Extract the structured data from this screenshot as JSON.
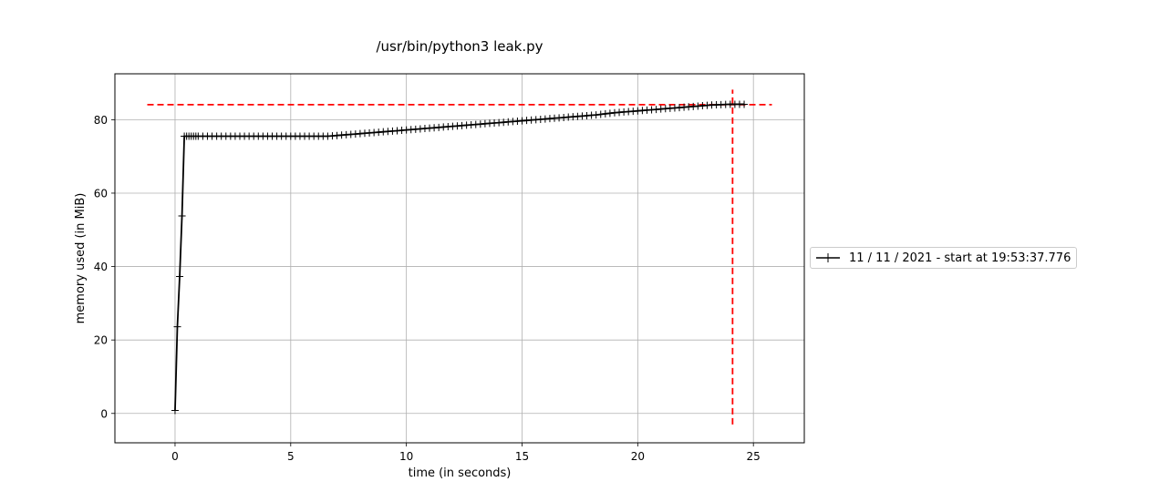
{
  "chart_data": {
    "type": "line",
    "title": "/usr/bin/python3 leak.py",
    "xlabel": "time (in seconds)",
    "ylabel": "memory used (in MiB)",
    "xlim": [
      -2.6,
      27.2
    ],
    "ylim": [
      -8,
      92.5
    ],
    "xticks": [
      0,
      5,
      10,
      15,
      20,
      25
    ],
    "yticks": [
      0,
      20,
      40,
      60,
      80
    ],
    "grid": true,
    "legend_position": "right",
    "series": [
      {
        "name": "11 / 11 / 2021 - start at 19:53:37.776",
        "color": "#000000",
        "marker": "+",
        "x": [
          0.0,
          0.1,
          0.2,
          0.3,
          0.4,
          0.5,
          0.6,
          0.7,
          0.8,
          0.9,
          1.0,
          1.2,
          1.4,
          1.6,
          1.8,
          2.0,
          2.2,
          2.4,
          2.6,
          2.8,
          3.0,
          3.2,
          3.4,
          3.6,
          3.8,
          4.0,
          4.2,
          4.4,
          4.6,
          4.8,
          5.0,
          5.2,
          5.4,
          5.6,
          5.8,
          6.0,
          6.2,
          6.4,
          6.6,
          6.8,
          7.0,
          7.2,
          7.4,
          7.6,
          7.8,
          8.0,
          8.2,
          8.4,
          8.6,
          8.8,
          9.0,
          9.2,
          9.4,
          9.6,
          9.8,
          10.0,
          10.2,
          10.4,
          10.6,
          10.8,
          11.0,
          11.2,
          11.4,
          11.6,
          11.8,
          12.0,
          12.2,
          12.4,
          12.6,
          12.8,
          13.0,
          13.2,
          13.4,
          13.6,
          13.8,
          14.0,
          14.2,
          14.4,
          14.6,
          14.8,
          15.0,
          15.2,
          15.4,
          15.6,
          15.8,
          16.0,
          16.2,
          16.4,
          16.6,
          16.8,
          17.0,
          17.2,
          17.4,
          17.6,
          17.8,
          18.0,
          18.2,
          18.4,
          18.6,
          18.8,
          19.0,
          19.2,
          19.4,
          19.6,
          19.8,
          20.0,
          20.2,
          20.4,
          20.6,
          20.8,
          21.0,
          21.2,
          21.4,
          21.6,
          21.8,
          22.0,
          22.2,
          22.4,
          22.6,
          22.8,
          23.0,
          23.2,
          23.4,
          23.6,
          23.8,
          24.0,
          24.2,
          24.4,
          24.6
        ],
        "y": [
          0.8,
          23.6,
          37.3,
          53.8,
          75.5,
          75.5,
          75.5,
          75.5,
          75.5,
          75.5,
          75.5,
          75.5,
          75.5,
          75.5,
          75.5,
          75.5,
          75.5,
          75.5,
          75.5,
          75.5,
          75.5,
          75.5,
          75.5,
          75.5,
          75.5,
          75.5,
          75.5,
          75.5,
          75.5,
          75.5,
          75.5,
          75.5,
          75.5,
          75.5,
          75.5,
          75.5,
          75.5,
          75.5,
          75.5,
          75.6,
          75.7,
          75.8,
          75.9,
          76.0,
          76.1,
          76.2,
          76.3,
          76.4,
          76.5,
          76.6,
          76.7,
          76.8,
          76.9,
          77.0,
          77.1,
          77.2,
          77.3,
          77.4,
          77.5,
          77.6,
          77.7,
          77.8,
          77.9,
          78.0,
          78.1,
          78.2,
          78.3,
          78.4,
          78.5,
          78.6,
          78.7,
          78.8,
          78.9,
          79.0,
          79.1,
          79.2,
          79.3,
          79.4,
          79.5,
          79.6,
          79.7,
          79.8,
          79.9,
          80.0,
          80.1,
          80.2,
          80.3,
          80.4,
          80.5,
          80.6,
          80.7,
          80.8,
          80.9,
          81.0,
          81.1,
          81.2,
          81.3,
          81.45,
          81.6,
          81.75,
          81.9,
          82.0,
          82.1,
          82.2,
          82.3,
          82.4,
          82.5,
          82.6,
          82.7,
          82.8,
          82.9,
          83.0,
          83.1,
          83.2,
          83.3,
          83.4,
          83.5,
          83.6,
          83.7,
          83.8,
          83.9,
          84.0,
          84.05,
          84.1,
          84.15,
          84.2,
          84.2,
          84.2,
          84.2
        ]
      }
    ],
    "reference_lines": [
      {
        "orientation": "horizontal",
        "value": 84.1,
        "from": -1.2,
        "to": 25.8,
        "color": "#ff0000",
        "style": "dashed"
      },
      {
        "orientation": "vertical",
        "value": 24.1,
        "from": -3.0,
        "to": 88.2,
        "color": "#ff0000",
        "style": "dashed"
      }
    ]
  }
}
